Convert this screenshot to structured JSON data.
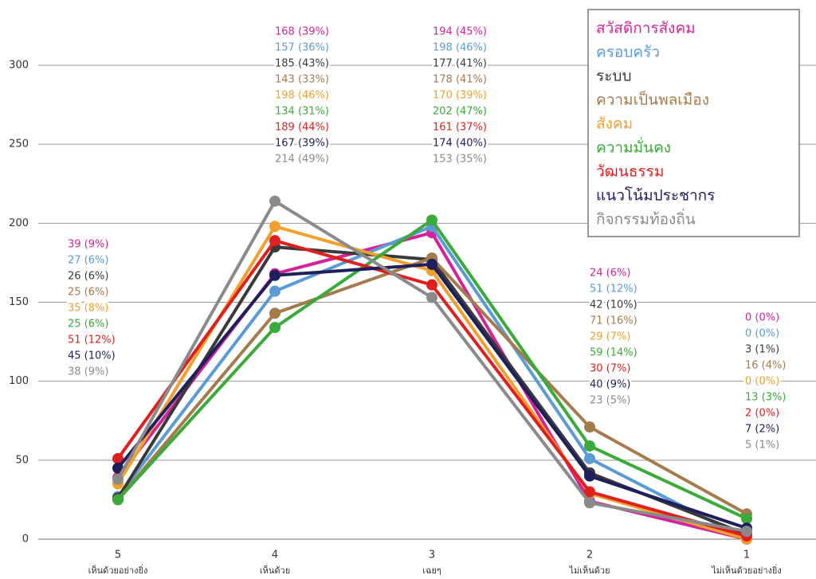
{
  "chart_data": {
    "type": "line",
    "categories": [
      "5",
      "4",
      "3",
      "2",
      "1"
    ],
    "category_labels": [
      "เห็นด้วยอย่างยิ่ง",
      "เห็นด้วย",
      "เฉยๆ",
      "ไม่เห็นด้วย",
      "ไม่เห็นด้วยอย่างยิ่ง"
    ],
    "ylim": [
      0,
      300
    ],
    "yticks": [
      0,
      50,
      100,
      150,
      200,
      250,
      300
    ],
    "grid": true,
    "legend": "upper right",
    "series": [
      {
        "name": "สวัสดิการสังคม",
        "color": "#d4239a",
        "values": [
          39,
          168,
          194,
          24,
          0
        ],
        "value_labels": [
          "39  (9%)",
          "168  (39%)",
          "194  (45%)",
          "24  (6%)",
          "0  (0%)"
        ]
      },
      {
        "name": "ครอบครัว",
        "color": "#5b9bd5",
        "values": [
          27,
          157,
          198,
          51,
          0
        ],
        "value_labels": [
          "27  (6%)",
          "157  (36%)",
          "198  (46%)",
          "51  (12%)",
          "0  (0%)"
        ]
      },
      {
        "name": "ระบบ",
        "color": "#3a3a3a",
        "values": [
          26,
          185,
          177,
          42,
          3
        ],
        "value_labels": [
          "26  (6%)",
          "185  (43%)",
          "177  (41%)",
          "42  (10%)",
          "3  (1%)"
        ]
      },
      {
        "name": "ความเป็นพลเมือง",
        "color": "#a57a4c",
        "values": [
          25,
          143,
          178,
          71,
          16
        ],
        "value_labels": [
          "25  (6%)",
          "143  (33%)",
          "178  (41%)",
          "71  (16%)",
          "16  (4%)"
        ]
      },
      {
        "name": "สังคม",
        "color": "#f0a02c",
        "values": [
          35,
          198,
          170,
          29,
          0
        ],
        "value_labels": [
          "35  (8%)",
          "198  (46%)",
          "170  (39%)",
          "29  (7%)",
          "0  (0%)"
        ]
      },
      {
        "name": "ความมั่นคง",
        "color": "#3aaa3a",
        "values": [
          25,
          134,
          202,
          59,
          13
        ],
        "value_labels": [
          "25  (6%)",
          "134  (31%)",
          "202  (47%)",
          "59  (14%)",
          "13  (3%)"
        ]
      },
      {
        "name": "วัฒนธรรม",
        "color": "#e0201e",
        "values": [
          51,
          189,
          161,
          30,
          2
        ],
        "value_labels": [
          "51  (12%)",
          "189  (44%)",
          "161  (37%)",
          "30  (7%)",
          "2  (0%)"
        ]
      },
      {
        "name": "แนวโน้มประชากร",
        "color": "#1f1f5c",
        "values": [
          45,
          167,
          174,
          40,
          7
        ],
        "value_labels": [
          "45  (10%)",
          "167  (39%)",
          "174  (40%)",
          "40  (9%)",
          "7  (2%)"
        ]
      },
      {
        "name": "กิจกรรมท้องถิ่น",
        "color": "#8a8a8a",
        "values": [
          38,
          214,
          153,
          23,
          5
        ],
        "value_labels": [
          "38  (9%)",
          "214  (49%)",
          "153  (35%)",
          "23  (5%)",
          "5  (1%)"
        ]
      }
    ]
  }
}
